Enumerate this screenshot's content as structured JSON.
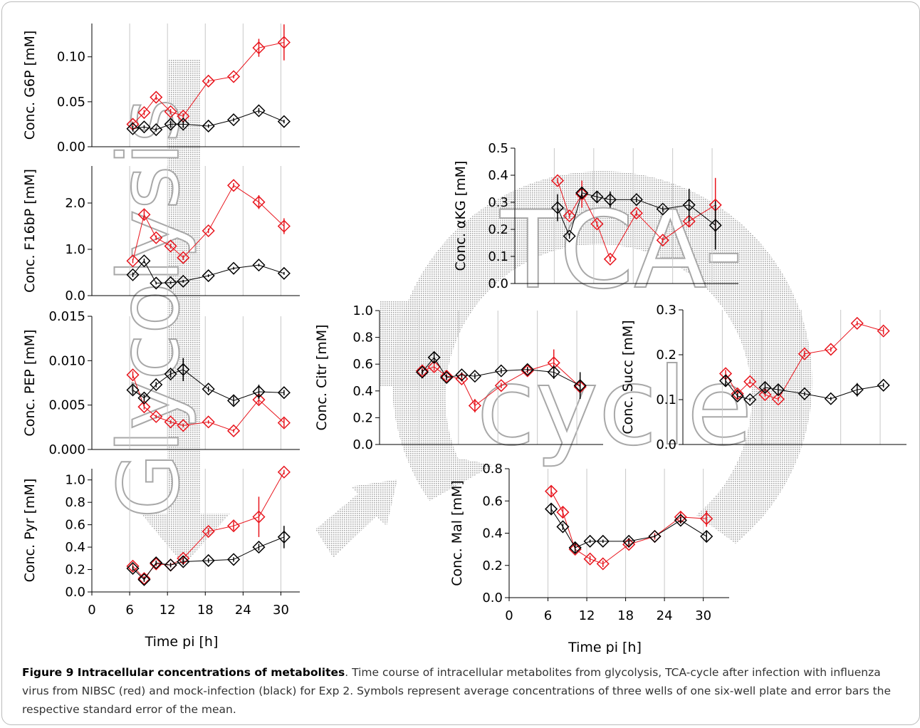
{
  "background_text": [
    "Glycolysis",
    "TCA-",
    "cycle"
  ],
  "caption": {
    "label": "Figure 9 Intracellular concentrations of metabolites",
    "text": ". Time course of intracellular metabolites from glycolysis, TCA-cycle after infection with influenza virus from NIBSC (red) and mock-infection (black) for Exp 2. Symbols represent average concentrations of three wells of one six-well plate and error bars the respective standard error of the mean."
  },
  "chart_data": [
    {
      "type": "line",
      "y_label": "Conc. G6P [mM]",
      "x": [
        6.5,
        8.3,
        10.2,
        12.5,
        14.5,
        18.5,
        22.5,
        26.5,
        30.5
      ],
      "xlim": [
        0,
        33
      ],
      "ylim": [
        0,
        0.137
      ],
      "yticks": [
        {
          "value": 0,
          "label": "0.00"
        },
        {
          "value": 0.05,
          "label": "0.05"
        },
        {
          "value": 0.1,
          "label": "0.10"
        }
      ],
      "series": [
        {
          "color": "#e8141c",
          "values": [
            0.025,
            0.038,
            0.055,
            0.039,
            0.034,
            0.073,
            0.078,
            0.11,
            0.116
          ],
          "errors": [
            0.003,
            0.003,
            0.003,
            0.003,
            0.003,
            0.002,
            0.002,
            0.01,
            0.02
          ]
        },
        {
          "color": "#000000",
          "values": [
            0.02,
            0.022,
            0.019,
            0.025,
            0.025,
            0.023,
            0.03,
            0.04,
            0.028
          ],
          "errors": [
            0.003,
            0.002,
            0.002,
            0.004,
            0.004,
            0.002,
            0.002,
            0.003,
            0.002
          ]
        }
      ]
    },
    {
      "type": "line",
      "y_label": "Conc. F16bP [mM]",
      "x": [
        6.5,
        8.3,
        10.2,
        12.5,
        14.5,
        18.5,
        22.5,
        26.5,
        30.5
      ],
      "xlim": [
        0,
        33
      ],
      "ylim": [
        0,
        2.8
      ],
      "yticks": [
        {
          "value": 0,
          "label": "0.0"
        },
        {
          "value": 1,
          "label": "1.0"
        },
        {
          "value": 2,
          "label": "2.0"
        }
      ],
      "series": [
        {
          "color": "#e8141c",
          "values": [
            0.75,
            1.75,
            1.25,
            1.07,
            0.82,
            1.4,
            2.38,
            2.02,
            1.5
          ],
          "errors": [
            0.05,
            0.1,
            0.05,
            0.05,
            0.05,
            0.05,
            0.05,
            0.15,
            0.17
          ]
        },
        {
          "color": "#000000",
          "values": [
            0.45,
            0.75,
            0.27,
            0.28,
            0.31,
            0.43,
            0.59,
            0.66,
            0.48
          ],
          "errors": [
            0.05,
            0.05,
            0.03,
            0.03,
            0.03,
            0.03,
            0.03,
            0.03,
            0.03
          ]
        }
      ]
    },
    {
      "type": "line",
      "y_label": "Conc. PEP [mM]",
      "x": [
        6.5,
        8.3,
        10.2,
        12.5,
        14.5,
        18.5,
        22.5,
        26.5,
        30.5
      ],
      "xlim": [
        0,
        33
      ],
      "ylim": [
        0,
        0.015
      ],
      "yticks": [
        {
          "value": 0,
          "label": "0.000"
        },
        {
          "value": 0.005,
          "label": "0.005"
        },
        {
          "value": 0.01,
          "label": "0.010"
        },
        {
          "value": 0.015,
          "label": "0.015"
        }
      ],
      "series": [
        {
          "color": "#e8141c",
          "values": [
            0.0084,
            0.0048,
            0.0037,
            0.0031,
            0.0027,
            0.0031,
            0.0021,
            0.0056,
            0.003
          ],
          "errors": [
            0.0004,
            0.0003,
            0.0002,
            0.0002,
            0.0002,
            0.0002,
            0.0002,
            0.0005,
            0.0005
          ]
        },
        {
          "color": "#000000",
          "values": [
            0.0067,
            0.0058,
            0.0073,
            0.0085,
            0.009,
            0.0068,
            0.0055,
            0.0065,
            0.0064
          ],
          "errors": [
            0.0005,
            0.0004,
            0.0003,
            0.0004,
            0.0013,
            0.0003,
            0.0005,
            0.0008,
            0.0003
          ]
        }
      ]
    },
    {
      "type": "line",
      "y_label": "Conc. Pyr [mM]",
      "x_label": "Time pi [h]",
      "x": [
        6.5,
        8.3,
        10.2,
        12.5,
        14.5,
        18.5,
        22.5,
        26.5,
        30.5
      ],
      "xlim": [
        0,
        33
      ],
      "ylim": [
        0,
        1.1
      ],
      "xticks": [
        0,
        6,
        12,
        18,
        24,
        30
      ],
      "yticks": [
        {
          "value": 0,
          "label": "0.0"
        },
        0.2,
        0.4,
        0.6,
        0.8,
        {
          "value": 1,
          "label": "1.0"
        }
      ],
      "series": [
        {
          "color": "#e8141c",
          "values": [
            0.23,
            0.12,
            0.25,
            0.24,
            0.3,
            0.54,
            0.59,
            0.67,
            1.07
          ],
          "errors": [
            0.02,
            0.02,
            0.02,
            0.02,
            0.02,
            0.03,
            0.04,
            0.18,
            0.02
          ]
        },
        {
          "color": "#000000",
          "values": [
            0.21,
            0.11,
            0.26,
            0.24,
            0.27,
            0.28,
            0.29,
            0.4,
            0.49
          ],
          "errors": [
            0.02,
            0.02,
            0.02,
            0.02,
            0.03,
            0.02,
            0.02,
            0.03,
            0.1
          ]
        }
      ]
    },
    {
      "type": "line",
      "y_label": "Conc. αKG [mM]",
      "x": [
        6.5,
        8.3,
        10.2,
        12.5,
        14.5,
        18.5,
        22.5,
        26.5,
        30.5
      ],
      "xlim": [
        0,
        34
      ],
      "ylim": [
        0,
        0.5
      ],
      "yticks": [
        {
          "value": 0,
          "label": "0.0"
        },
        0.1,
        0.2,
        0.3,
        0.4,
        0.5
      ],
      "series": [
        {
          "color": "#e8141c",
          "values": [
            0.38,
            0.25,
            0.33,
            0.22,
            0.09,
            0.26,
            0.16,
            0.23,
            0.29
          ],
          "errors": [
            0.01,
            0.01,
            0.05,
            0.01,
            0.01,
            0.01,
            0.01,
            0.02,
            0.1
          ]
        },
        {
          "color": "#000000",
          "values": [
            0.28,
            0.175,
            0.335,
            0.32,
            0.31,
            0.31,
            0.275,
            0.29,
            0.215
          ],
          "errors": [
            0.05,
            0.01,
            0.02,
            0.02,
            0.03,
            0.01,
            0.01,
            0.06,
            0.09
          ]
        }
      ]
    },
    {
      "type": "line",
      "y_label": "Conc. Citr [mM]",
      "x": [
        6.5,
        8.3,
        10.2,
        12.5,
        14.5,
        18.5,
        22.5,
        26.5,
        30.5
      ],
      "xlim": [
        0,
        34
      ],
      "ylim": [
        0,
        1
      ],
      "yticks": [
        {
          "value": 0,
          "label": "0.0"
        },
        0.2,
        0.4,
        0.6,
        0.8,
        {
          "value": 1,
          "label": "1.0"
        }
      ],
      "series": [
        {
          "color": "#e8141c",
          "values": [
            0.55,
            0.58,
            0.51,
            0.49,
            0.29,
            0.44,
            0.55,
            0.61,
            0.43
          ],
          "errors": [
            0.02,
            0.03,
            0.02,
            0.02,
            0.05,
            0.02,
            0.02,
            0.1,
            0.05
          ]
        },
        {
          "color": "#000000",
          "values": [
            0.54,
            0.65,
            0.5,
            0.52,
            0.51,
            0.55,
            0.56,
            0.54,
            0.44
          ],
          "errors": [
            0.02,
            0.04,
            0.02,
            0.02,
            0.02,
            0.02,
            0.02,
            0.05,
            0.1
          ]
        }
      ]
    },
    {
      "type": "line",
      "y_label": "Conc. Succ [mM]",
      "x": [
        6.5,
        8.3,
        10.2,
        12.5,
        14.5,
        18.5,
        22.5,
        26.5,
        30.5
      ],
      "xlim": [
        0,
        34
      ],
      "ylim": [
        0,
        0.3
      ],
      "yticks": [
        {
          "value": 0,
          "label": "0.0"
        },
        0.1,
        0.2,
        0.3
      ],
      "series": [
        {
          "color": "#e8141c",
          "values": [
            0.158,
            0.113,
            0.14,
            0.111,
            0.101,
            0.202,
            0.212,
            0.27,
            0.253
          ],
          "errors": [
            0.008,
            0.008,
            0.005,
            0.005,
            0.005,
            0.007,
            0.005,
            0.005,
            0.008
          ]
        },
        {
          "color": "#000000",
          "values": [
            0.142,
            0.108,
            0.1,
            0.127,
            0.122,
            0.113,
            0.102,
            0.122,
            0.132
          ],
          "errors": [
            0.012,
            0.006,
            0.004,
            0.01,
            0.01,
            0.004,
            0.004,
            0.015,
            0.005
          ]
        }
      ]
    },
    {
      "type": "line",
      "y_label": "Conc. Mal [mM]",
      "x_label": "Time pi [h]",
      "x": [
        6.5,
        8.3,
        10.2,
        12.5,
        14.5,
        18.5,
        22.5,
        26.5,
        30.5
      ],
      "xlim": [
        0,
        34
      ],
      "ylim": [
        0,
        0.8
      ],
      "xticks": [
        0,
        6,
        12,
        18,
        24,
        30
      ],
      "yticks": [
        {
          "value": 0,
          "label": "0.0"
        },
        0.2,
        0.4,
        0.6,
        0.8
      ],
      "series": [
        {
          "color": "#e8141c",
          "values": [
            0.66,
            0.53,
            0.3,
            0.24,
            0.21,
            0.33,
            0.38,
            0.5,
            0.49
          ],
          "errors": [
            0.03,
            0.03,
            0.02,
            0.02,
            0.02,
            0.02,
            0.02,
            0.03,
            0.05
          ]
        },
        {
          "color": "#000000",
          "values": [
            0.55,
            0.44,
            0.31,
            0.35,
            0.35,
            0.35,
            0.38,
            0.48,
            0.38
          ],
          "errors": [
            0.03,
            0.02,
            0.03,
            0.01,
            0.01,
            0.02,
            0.01,
            0.02,
            0.03
          ]
        }
      ]
    }
  ]
}
